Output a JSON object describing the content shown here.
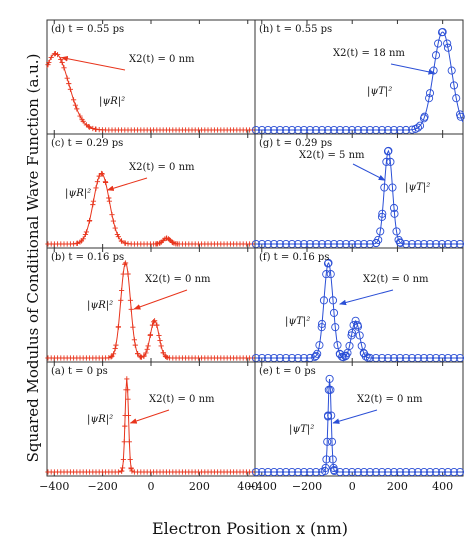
{
  "figure": {
    "ylabel": "Squared Modulus of Conditional Wave Function (a.u.)",
    "xlabel": "Electron Position x (nm)",
    "xticks": [
      -400,
      -200,
      0,
      200,
      400
    ],
    "colors": {
      "red": "#e8341c",
      "blue": "#2b4fd6",
      "frame": "#333333"
    }
  },
  "chart_data": [
    {
      "type": "line",
      "id": "d",
      "col": 0,
      "row": 0,
      "label": "(d) t = 0.55 ps",
      "xlim": [
        -430,
        430
      ],
      "marker": "plus",
      "color": "#e8341c",
      "peaks": [
        {
          "x": -395,
          "h": 0.78,
          "w": 55
        }
      ],
      "annotation": {
        "text": "X2(t) = 0 nm",
        "arrow_to": [
          -370,
          0.74
        ]
      },
      "psi_label": "|ψR|²"
    },
    {
      "type": "line",
      "id": "h",
      "col": 1,
      "row": 0,
      "label": "(h) t = 0.55 ps",
      "xlim": [
        -430,
        490
      ],
      "marker": "circle",
      "color": "#2b4fd6",
      "peaks": [
        {
          "x": 400,
          "h": 1.0,
          "w": 40
        }
      ],
      "annotation": {
        "text": "X2(t) = 18 nm",
        "arrow_to": [
          365,
          0.58
        ]
      },
      "psi_label": "|ψT|²"
    },
    {
      "type": "line",
      "id": "c",
      "col": 0,
      "row": 1,
      "label": "(c) t = 0.29 ps",
      "xlim": [
        -430,
        430
      ],
      "marker": "plus",
      "color": "#e8341c",
      "peaks": [
        {
          "x": -205,
          "h": 0.72,
          "w": 33
        },
        {
          "x": 65,
          "h": 0.06,
          "w": 15
        }
      ],
      "annotation": {
        "text": "X2(t) = 0 nm",
        "arrow_to": [
          -180,
          0.55
        ]
      },
      "psi_label": "|ψR|²"
    },
    {
      "type": "line",
      "id": "g",
      "col": 1,
      "row": 1,
      "label": "(g) t = 0.29 ps",
      "xlim": [
        -430,
        490
      ],
      "marker": "circle",
      "color": "#2b4fd6",
      "peaks": [
        {
          "x": 160,
          "h": 0.95,
          "w": 18
        }
      ],
      "annotation": {
        "text": "X2(t) = 5 nm",
        "arrow_to": [
          145,
          0.65
        ]
      },
      "psi_label": "|ψT|²"
    },
    {
      "type": "line",
      "id": "b",
      "col": 0,
      "row": 2,
      "label": "(b) t = 0.16 ps",
      "xlim": [
        -430,
        430
      ],
      "marker": "plus",
      "color": "#e8341c",
      "peaks": [
        {
          "x": -105,
          "h": 0.97,
          "w": 20
        },
        {
          "x": 15,
          "h": 0.38,
          "w": 18
        }
      ],
      "annotation": {
        "text": "X2(t) = 0 nm",
        "arrow_to": [
          -70,
          0.5
        ]
      },
      "psi_label": "|ψR|²"
    },
    {
      "type": "line",
      "id": "f",
      "col": 1,
      "row": 2,
      "label": "(f) t = 0.16 ps",
      "xlim": [
        -430,
        490
      ],
      "marker": "circle",
      "color": "#2b4fd6",
      "peaks": [
        {
          "x": -105,
          "h": 0.97,
          "w": 20
        },
        {
          "x": 15,
          "h": 0.38,
          "w": 18
        }
      ],
      "annotation": {
        "text": "X2(t) = 0 nm",
        "arrow_to": [
          -55,
          0.55
        ]
      },
      "psi_label": "|ψT|²"
    },
    {
      "type": "line",
      "id": "a",
      "col": 0,
      "row": 3,
      "label": "(a) t = 0 ps",
      "xlim": [
        -430,
        430
      ],
      "marker": "plus",
      "color": "#e8341c",
      "peaks": [
        {
          "x": -100,
          "h": 0.95,
          "w": 7
        }
      ],
      "annotation": {
        "text": "X2(t) = 0 nm",
        "arrow_to": [
          -85,
          0.5
        ]
      },
      "psi_label": "|ψR|²"
    },
    {
      "type": "line",
      "id": "e",
      "col": 1,
      "row": 3,
      "label": "(e) t = 0 ps",
      "xlim": [
        -430,
        490
      ],
      "marker": "circle",
      "color": "#2b4fd6",
      "peaks": [
        {
          "x": -100,
          "h": 0.95,
          "w": 7
        }
      ],
      "annotation": {
        "text": "X2(t) = 0 nm",
        "arrow_to": [
          -85,
          0.5
        ]
      },
      "psi_label": "|ψT|²"
    }
  ]
}
